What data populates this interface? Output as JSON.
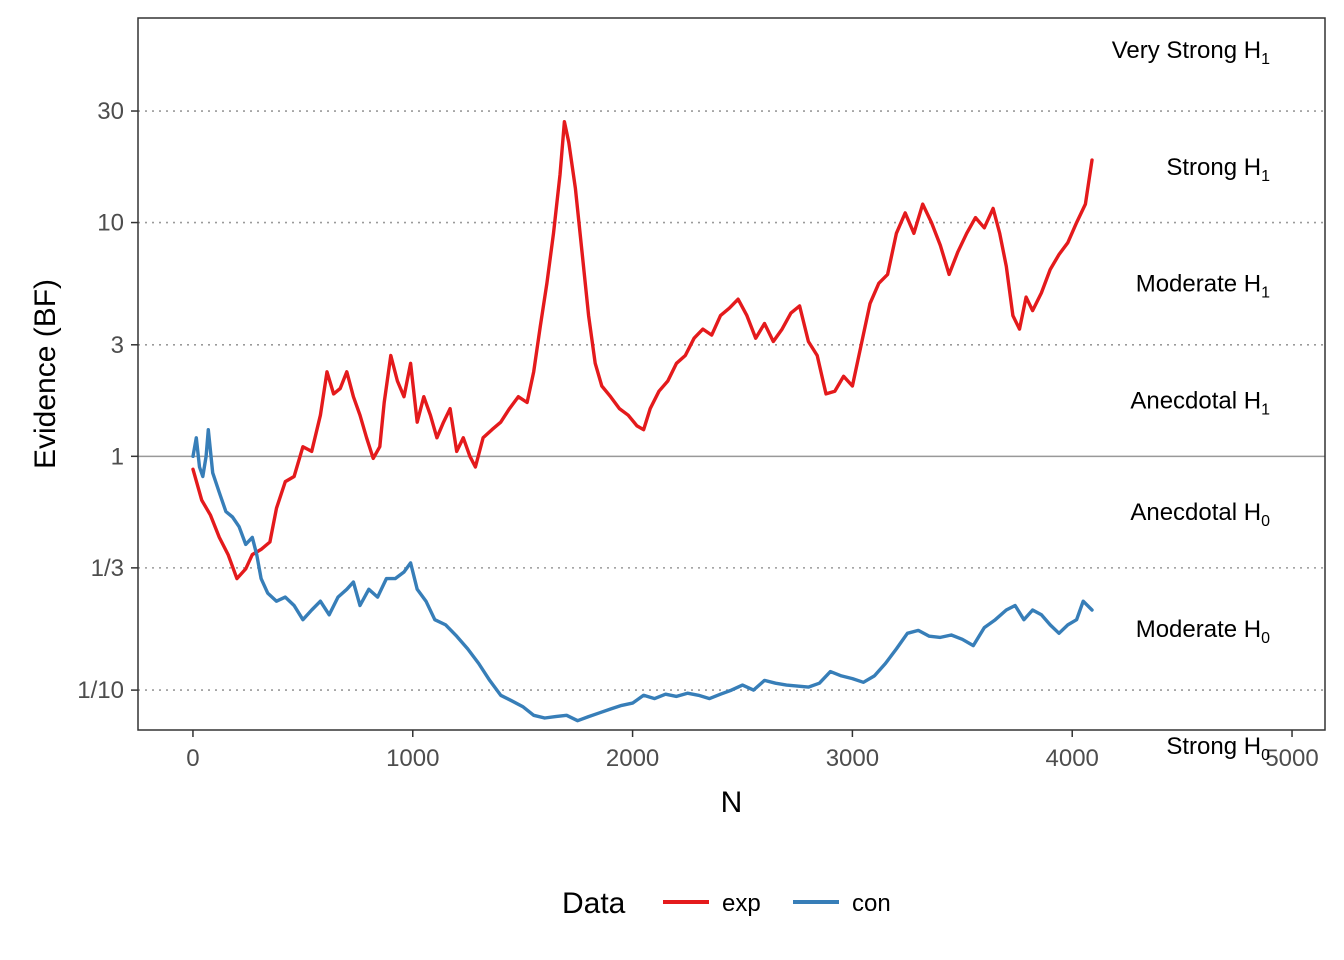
{
  "chart_data": {
    "type": "line",
    "xlabel": "N",
    "ylabel": "Evidence (BF)",
    "xlim": [
      -250,
      5150
    ],
    "ylim": [
      0.0675,
      75
    ],
    "yscale": "log",
    "x_ticks": [
      0,
      1000,
      2000,
      3000,
      4000,
      5000
    ],
    "x_tick_labels": [
      "0",
      "1000",
      "2000",
      "3000",
      "4000",
      "5000"
    ],
    "y_ticks": [
      0.1,
      0.3333,
      1,
      3,
      10,
      30
    ],
    "y_tick_labels": [
      "1/10",
      "1/3",
      "1",
      "3",
      "10",
      "30"
    ],
    "gridlines": {
      "dotted_at": [
        0.1,
        0.3333,
        3,
        10,
        30
      ],
      "solid_at": [
        1
      ]
    },
    "bands": [
      {
        "main": "Very Strong H",
        "sub": "1",
        "y": 54.8
      },
      {
        "main": "Strong H",
        "sub": "1",
        "y": 17.3
      },
      {
        "main": "Moderate H",
        "sub": "1",
        "y": 5.48
      },
      {
        "main": "Anecdotal H",
        "sub": "1",
        "y": 1.73
      },
      {
        "main": "Anecdotal H",
        "sub": "0",
        "y": 0.577
      },
      {
        "main": "Moderate H",
        "sub": "0",
        "y": 0.1826
      },
      {
        "main": "Strong H",
        "sub": "0",
        "y": 0.0577
      }
    ],
    "legend": {
      "title": "Data",
      "position": "bottom"
    },
    "series": [
      {
        "name": "exp",
        "color": "#e41a1c",
        "points": [
          [
            0,
            0.88
          ],
          [
            40,
            0.65
          ],
          [
            80,
            0.56
          ],
          [
            120,
            0.45
          ],
          [
            160,
            0.38
          ],
          [
            200,
            0.3
          ],
          [
            240,
            0.33
          ],
          [
            270,
            0.38
          ],
          [
            310,
            0.4
          ],
          [
            350,
            0.43
          ],
          [
            380,
            0.6
          ],
          [
            420,
            0.78
          ],
          [
            460,
            0.82
          ],
          [
            500,
            1.1
          ],
          [
            540,
            1.05
          ],
          [
            580,
            1.5
          ],
          [
            610,
            2.3
          ],
          [
            640,
            1.85
          ],
          [
            670,
            1.95
          ],
          [
            700,
            2.3
          ],
          [
            730,
            1.8
          ],
          [
            760,
            1.5
          ],
          [
            790,
            1.2
          ],
          [
            820,
            0.98
          ],
          [
            850,
            1.1
          ],
          [
            870,
            1.7
          ],
          [
            900,
            2.7
          ],
          [
            930,
            2.1
          ],
          [
            960,
            1.8
          ],
          [
            990,
            2.5
          ],
          [
            1020,
            1.4
          ],
          [
            1050,
            1.8
          ],
          [
            1080,
            1.5
          ],
          [
            1110,
            1.2
          ],
          [
            1140,
            1.4
          ],
          [
            1170,
            1.6
          ],
          [
            1200,
            1.05
          ],
          [
            1230,
            1.2
          ],
          [
            1260,
            1.0
          ],
          [
            1285,
            0.9
          ],
          [
            1320,
            1.2
          ],
          [
            1360,
            1.3
          ],
          [
            1400,
            1.4
          ],
          [
            1440,
            1.6
          ],
          [
            1480,
            1.8
          ],
          [
            1520,
            1.7
          ],
          [
            1550,
            2.3
          ],
          [
            1580,
            3.6
          ],
          [
            1610,
            5.5
          ],
          [
            1640,
            9.0
          ],
          [
            1670,
            16.0
          ],
          [
            1690,
            27.0
          ],
          [
            1710,
            22.0
          ],
          [
            1740,
            14.0
          ],
          [
            1770,
            7.5
          ],
          [
            1800,
            4.0
          ],
          [
            1830,
            2.5
          ],
          [
            1860,
            2.0
          ],
          [
            1900,
            1.8
          ],
          [
            1940,
            1.6
          ],
          [
            1980,
            1.5
          ],
          [
            2020,
            1.35
          ],
          [
            2050,
            1.3
          ],
          [
            2080,
            1.6
          ],
          [
            2120,
            1.9
          ],
          [
            2160,
            2.1
          ],
          [
            2200,
            2.5
          ],
          [
            2240,
            2.7
          ],
          [
            2280,
            3.2
          ],
          [
            2320,
            3.5
          ],
          [
            2360,
            3.3
          ],
          [
            2400,
            4.0
          ],
          [
            2440,
            4.3
          ],
          [
            2480,
            4.7
          ],
          [
            2520,
            4.0
          ],
          [
            2560,
            3.2
          ],
          [
            2600,
            3.7
          ],
          [
            2640,
            3.1
          ],
          [
            2680,
            3.5
          ],
          [
            2720,
            4.1
          ],
          [
            2760,
            4.4
          ],
          [
            2800,
            3.1
          ],
          [
            2840,
            2.7
          ],
          [
            2880,
            1.85
          ],
          [
            2920,
            1.9
          ],
          [
            2960,
            2.2
          ],
          [
            3000,
            2.0
          ],
          [
            3040,
            3.0
          ],
          [
            3080,
            4.5
          ],
          [
            3120,
            5.5
          ],
          [
            3160,
            6.0
          ],
          [
            3200,
            9.0
          ],
          [
            3240,
            11.0
          ],
          [
            3280,
            9.0
          ],
          [
            3320,
            12.0
          ],
          [
            3360,
            10.0
          ],
          [
            3400,
            8.0
          ],
          [
            3440,
            6.0
          ],
          [
            3480,
            7.5
          ],
          [
            3520,
            9.0
          ],
          [
            3560,
            10.5
          ],
          [
            3600,
            9.5
          ],
          [
            3640,
            11.5
          ],
          [
            3670,
            9.0
          ],
          [
            3700,
            6.5
          ],
          [
            3730,
            4.0
          ],
          [
            3760,
            3.5
          ],
          [
            3790,
            4.8
          ],
          [
            3820,
            4.2
          ],
          [
            3860,
            5.0
          ],
          [
            3900,
            6.3
          ],
          [
            3940,
            7.3
          ],
          [
            3980,
            8.2
          ],
          [
            4020,
            10.0
          ],
          [
            4060,
            12.0
          ],
          [
            4090,
            18.5
          ]
        ]
      },
      {
        "name": "con",
        "color": "#377eb8",
        "points": [
          [
            0,
            1.0
          ],
          [
            15,
            1.2
          ],
          [
            30,
            0.9
          ],
          [
            45,
            0.82
          ],
          [
            60,
            1.0
          ],
          [
            70,
            1.3
          ],
          [
            90,
            0.85
          ],
          [
            120,
            0.7
          ],
          [
            150,
            0.58
          ],
          [
            180,
            0.55
          ],
          [
            210,
            0.5
          ],
          [
            240,
            0.42
          ],
          [
            270,
            0.45
          ],
          [
            290,
            0.38
          ],
          [
            310,
            0.3
          ],
          [
            340,
            0.26
          ],
          [
            380,
            0.24
          ],
          [
            420,
            0.25
          ],
          [
            460,
            0.23
          ],
          [
            500,
            0.2
          ],
          [
            540,
            0.22
          ],
          [
            580,
            0.24
          ],
          [
            620,
            0.21
          ],
          [
            660,
            0.25
          ],
          [
            700,
            0.27
          ],
          [
            730,
            0.29
          ],
          [
            760,
            0.23
          ],
          [
            800,
            0.27
          ],
          [
            840,
            0.25
          ],
          [
            880,
            0.3
          ],
          [
            920,
            0.3
          ],
          [
            960,
            0.32
          ],
          [
            990,
            0.35
          ],
          [
            1020,
            0.27
          ],
          [
            1060,
            0.24
          ],
          [
            1100,
            0.2
          ],
          [
            1150,
            0.19
          ],
          [
            1200,
            0.17
          ],
          [
            1250,
            0.15
          ],
          [
            1300,
            0.13
          ],
          [
            1350,
            0.11
          ],
          [
            1400,
            0.095
          ],
          [
            1450,
            0.09
          ],
          [
            1500,
            0.085
          ],
          [
            1550,
            0.078
          ],
          [
            1600,
            0.076
          ],
          [
            1650,
            0.077
          ],
          [
            1700,
            0.078
          ],
          [
            1750,
            0.074
          ],
          [
            1800,
            0.077
          ],
          [
            1850,
            0.08
          ],
          [
            1900,
            0.083
          ],
          [
            1950,
            0.086
          ],
          [
            2000,
            0.088
          ],
          [
            2050,
            0.095
          ],
          [
            2100,
            0.092
          ],
          [
            2150,
            0.096
          ],
          [
            2200,
            0.094
          ],
          [
            2250,
            0.097
          ],
          [
            2300,
            0.095
          ],
          [
            2350,
            0.092
          ],
          [
            2400,
            0.096
          ],
          [
            2450,
            0.1
          ],
          [
            2500,
            0.105
          ],
          [
            2550,
            0.1
          ],
          [
            2600,
            0.11
          ],
          [
            2650,
            0.107
          ],
          [
            2700,
            0.105
          ],
          [
            2750,
            0.104
          ],
          [
            2800,
            0.103
          ],
          [
            2850,
            0.107
          ],
          [
            2900,
            0.12
          ],
          [
            2950,
            0.115
          ],
          [
            3000,
            0.112
          ],
          [
            3050,
            0.108
          ],
          [
            3100,
            0.115
          ],
          [
            3150,
            0.13
          ],
          [
            3200,
            0.15
          ],
          [
            3250,
            0.175
          ],
          [
            3300,
            0.18
          ],
          [
            3350,
            0.17
          ],
          [
            3400,
            0.168
          ],
          [
            3450,
            0.172
          ],
          [
            3500,
            0.165
          ],
          [
            3550,
            0.155
          ],
          [
            3600,
            0.185
          ],
          [
            3650,
            0.2
          ],
          [
            3700,
            0.22
          ],
          [
            3740,
            0.23
          ],
          [
            3780,
            0.2
          ],
          [
            3820,
            0.22
          ],
          [
            3860,
            0.21
          ],
          [
            3900,
            0.19
          ],
          [
            3940,
            0.175
          ],
          [
            3980,
            0.19
          ],
          [
            4020,
            0.2
          ],
          [
            4050,
            0.24
          ],
          [
            4090,
            0.22
          ]
        ]
      }
    ]
  }
}
